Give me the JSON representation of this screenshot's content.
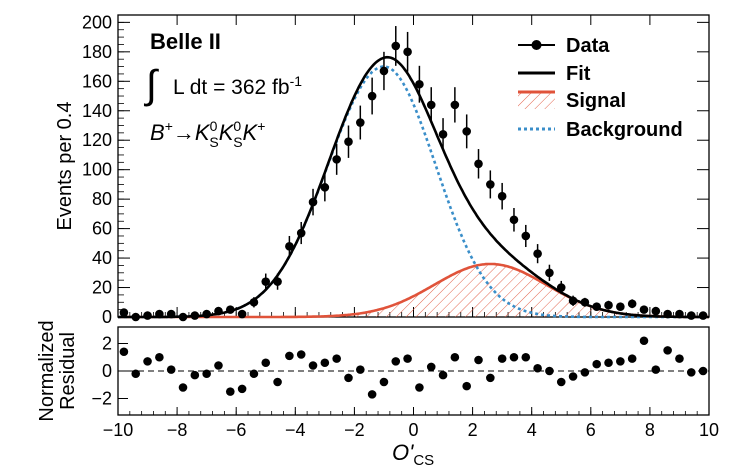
{
  "chart_data": {
    "type": "scatter",
    "experiment": "Belle II",
    "luminosity": {
      "prefix": "L dt = 362 fb",
      "exponent": "-1"
    },
    "decay": {
      "parent": "B",
      "parent_charge": "+",
      "arrow": "→",
      "kshort": "K",
      "kshort_sup": "0",
      "kshort_sub": "S",
      "kaon": "K",
      "kaon_charge": "+"
    },
    "xlabel": {
      "main": "O'",
      "sub": "CS"
    },
    "top_panel": {
      "ylabel": "Events per 0.4",
      "xlim": [
        -10,
        10
      ],
      "ylim": [
        0,
        205
      ],
      "yticks": [
        0,
        20,
        40,
        60,
        80,
        100,
        120,
        140,
        160,
        180,
        200
      ],
      "x": [
        -9.8,
        -9.4,
        -9.0,
        -8.6,
        -8.2,
        -7.8,
        -7.4,
        -7.0,
        -6.6,
        -6.2,
        -5.8,
        -5.4,
        -5.0,
        -4.6,
        -4.2,
        -3.8,
        -3.4,
        -3.0,
        -2.6,
        -2.2,
        -1.8,
        -1.4,
        -1.0,
        -0.6,
        -0.2,
        0.2,
        0.6,
        1.0,
        1.4,
        1.8,
        2.2,
        2.6,
        3.0,
        3.4,
        3.8,
        4.2,
        4.6,
        5.0,
        5.4,
        5.8,
        6.2,
        6.6,
        7.0,
        7.4,
        7.8,
        8.2,
        8.6,
        9.0,
        9.4,
        9.8
      ],
      "data": [
        3,
        0,
        1,
        2,
        2,
        0,
        1,
        2,
        4,
        5,
        2,
        10,
        24,
        24,
        48,
        57,
        78,
        88,
        107,
        119,
        132,
        150,
        167,
        184,
        180,
        158,
        144,
        124,
        144,
        126,
        104,
        90,
        82,
        66,
        55,
        43,
        30,
        20,
        11,
        10,
        7,
        8,
        7,
        9,
        5,
        4,
        2,
        2,
        1,
        1
      ],
      "errors": [
        2,
        1,
        1,
        1.5,
        1.5,
        1,
        1,
        1.5,
        2,
        2.5,
        1.5,
        3.5,
        5.5,
        5.5,
        7,
        7.5,
        9,
        9.5,
        10.5,
        11,
        11.5,
        12.5,
        13,
        13.5,
        13.5,
        12.5,
        12,
        11,
        12,
        11.5,
        10,
        9.5,
        9,
        8,
        7.5,
        6.5,
        5.5,
        4.5,
        3.5,
        3,
        2.5,
        3,
        2.5,
        3,
        2.5,
        2,
        1.5,
        1.5,
        1,
        1
      ],
      "signal": {
        "mean": 2.6,
        "sigma": 1.9,
        "peak": 36
      },
      "background": {
        "mean": -1.0,
        "sigma_left": 1.9,
        "sigma_right": 1.75,
        "peak": 170
      },
      "legend": {
        "position": "top-right",
        "entries": [
          "Data",
          "Fit",
          "Signal",
          "Background"
        ]
      },
      "colors": {
        "data": "#000000",
        "fit": "#000000",
        "signal": "#e0533a",
        "background": "#3a8ec9"
      }
    },
    "bottom_panel": {
      "ylabel_line1": "Normalized",
      "ylabel_line2": "Residual",
      "ylim": [
        -3.2,
        3.2
      ],
      "yticks": [
        -2,
        0,
        2
      ],
      "residuals": [
        1.4,
        -0.2,
        0.7,
        1.0,
        0.1,
        -1.2,
        -0.3,
        -0.2,
        0.4,
        -1.5,
        -1.3,
        -0.2,
        0.6,
        -0.8,
        1.1,
        1.2,
        0.4,
        0.6,
        0.9,
        -0.5,
        0.1,
        -1.7,
        -0.8,
        0.7,
        0.9,
        -1.2,
        0.3,
        -0.3,
        1.0,
        -1.1,
        0.8,
        -0.5,
        0.9,
        1.0,
        1.0,
        0.2,
        0.0,
        -0.8,
        -0.4,
        -0.1,
        0.5,
        0.6,
        0.7,
        0.9,
        2.2,
        0.1,
        1.5,
        0.9,
        -0.1,
        0.0
      ]
    },
    "xticks": [
      -10,
      -8,
      -6,
      -4,
      -2,
      0,
      2,
      4,
      6,
      8,
      10
    ]
  }
}
